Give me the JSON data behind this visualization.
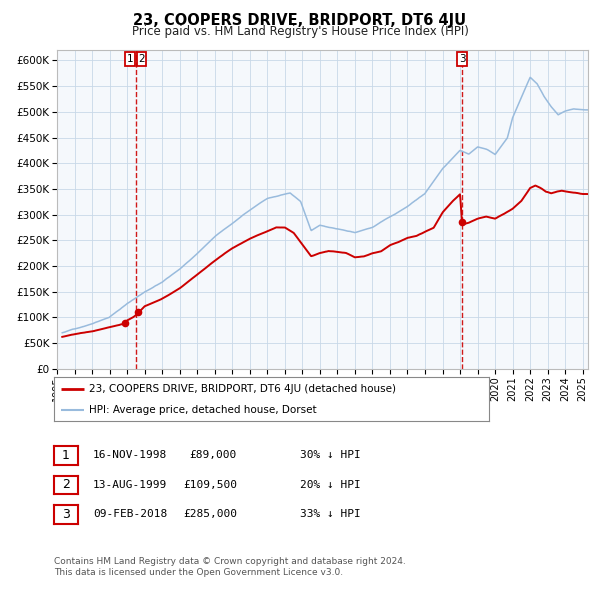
{
  "title": "23, COOPERS DRIVE, BRIDPORT, DT6 4JU",
  "subtitle": "Price paid vs. HM Land Registry's House Price Index (HPI)",
  "ylim": [
    0,
    620000
  ],
  "xlim_start": 1995.3,
  "xlim_end": 2025.3,
  "yticks": [
    0,
    50000,
    100000,
    150000,
    200000,
    250000,
    300000,
    350000,
    400000,
    450000,
    500000,
    550000,
    600000
  ],
  "ytick_labels": [
    "£0",
    "£50K",
    "£100K",
    "£150K",
    "£200K",
    "£250K",
    "£300K",
    "£350K",
    "£400K",
    "£450K",
    "£500K",
    "£550K",
    "£600K"
  ],
  "xticks": [
    1995,
    1996,
    1997,
    1998,
    1999,
    2000,
    2001,
    2002,
    2003,
    2004,
    2005,
    2006,
    2007,
    2008,
    2009,
    2010,
    2011,
    2012,
    2013,
    2014,
    2015,
    2016,
    2017,
    2018,
    2019,
    2020,
    2021,
    2022,
    2023,
    2024,
    2025
  ],
  "sale_points": [
    {
      "year": 1998.88,
      "price": 89000,
      "label": "1"
    },
    {
      "year": 1999.62,
      "price": 109500,
      "label": "2"
    },
    {
      "year": 2018.12,
      "price": 285000,
      "label": "3"
    }
  ],
  "vline1_x": 1999.5,
  "vline3_x": 2018.12,
  "legend_entries": [
    {
      "label": "23, COOPERS DRIVE, BRIDPORT, DT6 4JU (detached house)",
      "color": "#cc0000",
      "lw": 2.0
    },
    {
      "label": "HPI: Average price, detached house, Dorset",
      "color": "#99bbdd",
      "lw": 1.5
    }
  ],
  "table_rows": [
    {
      "num": "1",
      "date": "16-NOV-1998",
      "price": "£89,000",
      "hpi": "30% ↓ HPI"
    },
    {
      "num": "2",
      "date": "13-AUG-1999",
      "price": "£109,500",
      "hpi": "20% ↓ HPI"
    },
    {
      "num": "3",
      "date": "09-FEB-2018",
      "price": "£285,000",
      "hpi": "33% ↓ HPI"
    }
  ],
  "footnote1": "Contains HM Land Registry data © Crown copyright and database right 2024.",
  "footnote2": "This data is licensed under the Open Government Licence v3.0.",
  "red_color": "#cc0000",
  "blue_color": "#99bbdd",
  "grid_color": "#c8d8e8",
  "plot_bg": "#f5f8fc"
}
